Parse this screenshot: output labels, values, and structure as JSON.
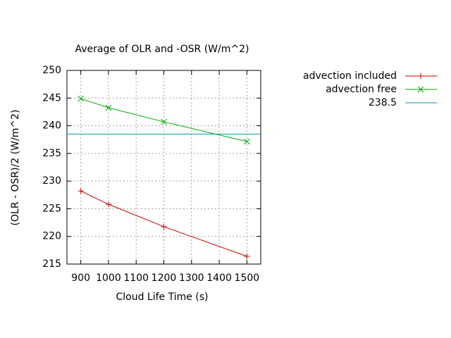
{
  "chart_data": {
    "type": "line",
    "title": "Average of OLR and -OSR (W/m^2)",
    "xlabel": "Cloud Life Time (s)",
    "ylabel": "(OLR - OSR)/2 (W/m^2)",
    "x": [
      900,
      1000,
      1200,
      1500
    ],
    "series": [
      {
        "name": "advection included",
        "color": "#cc0000",
        "marker": "plus",
        "values": [
          228.2,
          225.8,
          221.75,
          216.4
        ]
      },
      {
        "name": "advection free",
        "color": "#00aa00",
        "marker": "cross",
        "values": [
          244.9,
          243.25,
          240.7,
          237.15
        ]
      },
      {
        "name": "238.5",
        "color": "#0099aa",
        "value": 238.5
      }
    ],
    "xlim": [
      850,
      1550
    ],
    "xticks": [
      900,
      1000,
      1100,
      1200,
      1300,
      1400,
      1500
    ],
    "ylim": [
      215,
      250
    ],
    "yticks": [
      215,
      220,
      225,
      230,
      235,
      240,
      245,
      250
    ],
    "grid": true,
    "legend": "outside-top-right"
  }
}
